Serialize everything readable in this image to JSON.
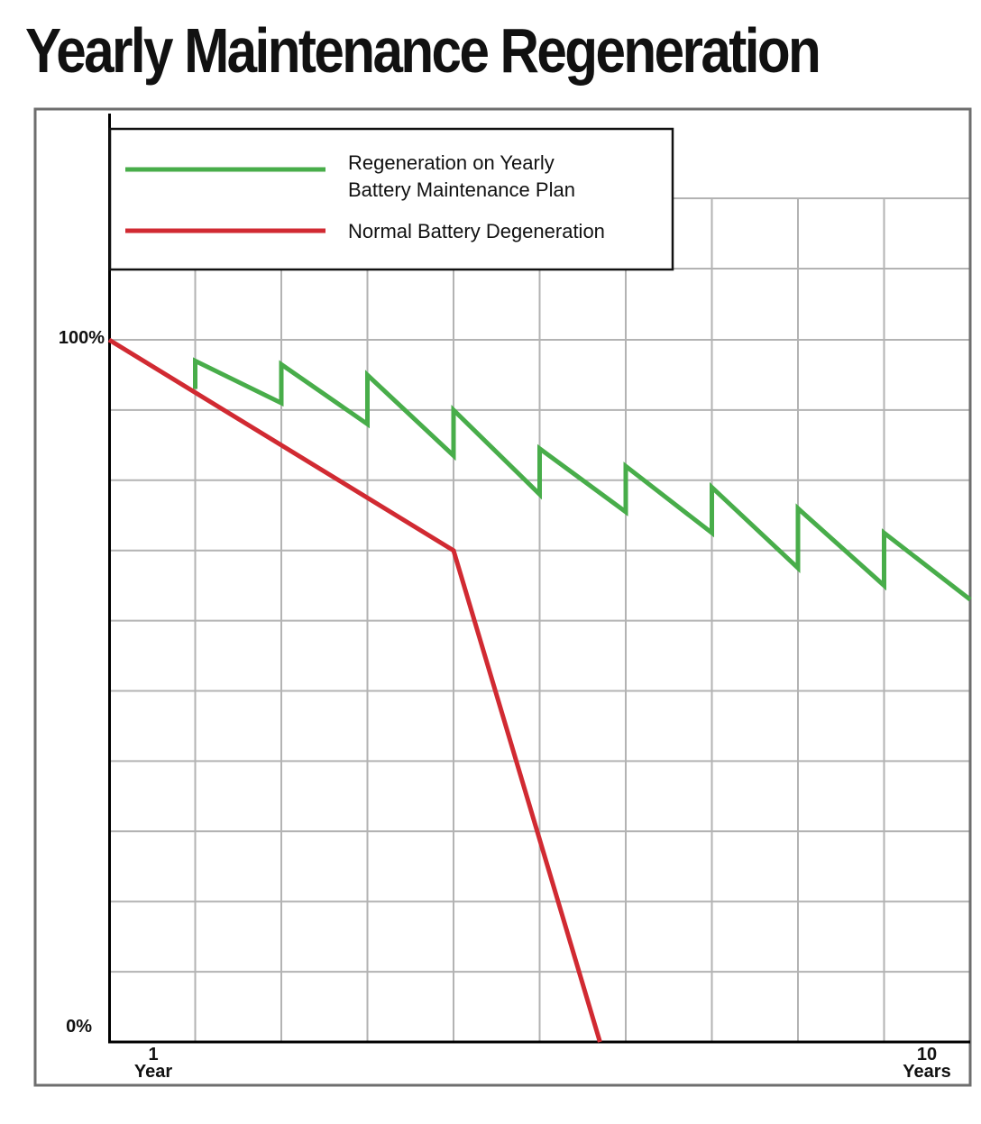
{
  "title": "Yearly Maintenance Regeneration",
  "chart_data": {
    "type": "line",
    "title": "Yearly Maintenance Regeneration",
    "xlabel": "",
    "ylabel": "",
    "y_ticks": [
      "100%",
      "0%"
    ],
    "x_ticks": [
      {
        "value": "1",
        "unit": "Year"
      },
      {
        "value": "10",
        "unit": "Years"
      }
    ],
    "xlim": [
      0,
      10
    ],
    "ylim": [
      0,
      100
    ],
    "grid": true,
    "legend_position": "top-left",
    "series": [
      {
        "name": "Regeneration on Yearly Battery Maintenance Plan",
        "legend_lines": [
          "Regeneration on Yearly",
          "Battery Maintenance Plan"
        ],
        "color": "#48ad4a",
        "points": [
          [
            1,
            93
          ],
          [
            1,
            97
          ],
          [
            2,
            91
          ],
          [
            2,
            96.5
          ],
          [
            3,
            88
          ],
          [
            3,
            95
          ],
          [
            4,
            83.5
          ],
          [
            4,
            90
          ],
          [
            5,
            78
          ],
          [
            5,
            84.5
          ],
          [
            6,
            75.5
          ],
          [
            6,
            82
          ],
          [
            7,
            72.5
          ],
          [
            7,
            79
          ],
          [
            8,
            67.5
          ],
          [
            8,
            76
          ],
          [
            9,
            65
          ],
          [
            9,
            72.5
          ],
          [
            10,
            63
          ]
        ]
      },
      {
        "name": "Normal Battery Degeneration",
        "legend_lines": [
          "Normal Battery Degeneration"
        ],
        "color": "#d12a32",
        "points": [
          [
            0,
            100
          ],
          [
            2,
            85
          ],
          [
            4,
            70
          ],
          [
            5.7,
            0
          ]
        ]
      }
    ]
  }
}
